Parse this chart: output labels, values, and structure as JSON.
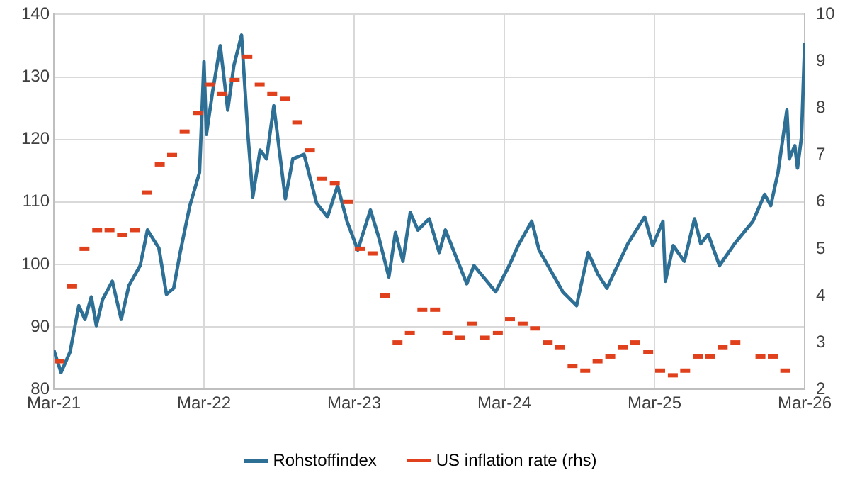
{
  "chart_data": {
    "type": "line",
    "legend": "bottom",
    "grid": true,
    "xlim": [
      "2021-03",
      "2026-03"
    ],
    "xticks": [
      {
        "value": "2021-03",
        "label": "Mar-21"
      },
      {
        "value": "2022-03",
        "label": "Mar-22"
      },
      {
        "value": "2023-03",
        "label": "Mar-23"
      },
      {
        "value": "2024-03",
        "label": "Mar-24"
      },
      {
        "value": "2025-03",
        "label": "Mar-25"
      },
      {
        "value": "2026-03",
        "label": "Mar-26"
      }
    ],
    "ylim": [
      80,
      140
    ],
    "yticks": [
      80,
      90,
      100,
      110,
      120,
      130,
      140
    ],
    "y2lim": [
      2,
      10
    ],
    "y2ticks": [
      2,
      3,
      4,
      5,
      6,
      7,
      8,
      9,
      10
    ],
    "series": [
      {
        "name": "Rohstoffindex",
        "type": "line",
        "color": "#2e6f96",
        "marker": "none",
        "line_style": "solid",
        "x": [
          "2021-03-01",
          "2021-03-19",
          "2021-04-10",
          "2021-05-01",
          "2021-05-16",
          "2021-06-01",
          "2021-06-13",
          "2021-06-28",
          "2021-07-22",
          "2021-08-13",
          "2021-09-01",
          "2021-09-28",
          "2021-10-16",
          "2021-11-13",
          "2021-12-01",
          "2021-12-19",
          "2022-01-04",
          "2022-01-28",
          "2022-02-19",
          "2022-03-01",
          "2022-03-07",
          "2022-03-22",
          "2022-04-10",
          "2022-04-28",
          "2022-05-13",
          "2022-06-01",
          "2022-06-16",
          "2022-06-28",
          "2022-07-16",
          "2022-08-01",
          "2022-08-19",
          "2022-09-16",
          "2022-10-04",
          "2022-11-01",
          "2022-12-01",
          "2022-12-28",
          "2023-01-22",
          "2023-02-13",
          "2023-03-10",
          "2023-04-10",
          "2023-05-01",
          "2023-05-25",
          "2023-06-10",
          "2023-06-28",
          "2023-07-16",
          "2023-08-04",
          "2023-09-01",
          "2023-09-25",
          "2023-10-10",
          "2023-12-01",
          "2023-12-19",
          "2024-02-10",
          "2024-03-13",
          "2024-04-04",
          "2024-05-07",
          "2024-05-25",
          "2024-07-22",
          "2024-08-25",
          "2024-09-22",
          "2024-10-16",
          "2024-11-07",
          "2024-12-28",
          "2025-02-07",
          "2025-02-25",
          "2025-03-22",
          "2025-03-28",
          "2025-04-16",
          "2025-05-13",
          "2025-06-07",
          "2025-06-22",
          "2025-07-10",
          "2025-08-07",
          "2025-09-13",
          "2025-10-28",
          "2025-11-25",
          "2025-12-10",
          "2025-12-28",
          "2026-01-19",
          "2026-01-25",
          "2026-02-07",
          "2026-02-13",
          "2026-02-22",
          "2026-03-01"
        ],
        "values": [
          86.3,
          82.7,
          86,
          93.4,
          91.2,
          94.8,
          90.2,
          94.4,
          97.3,
          91.2,
          96.6,
          99.8,
          105.5,
          102.6,
          95.2,
          96.2,
          101.9,
          109.4,
          114.7,
          132.5,
          120.8,
          127.5,
          135,
          124.7,
          131.8,
          136.7,
          121.1,
          110.8,
          118.3,
          116.9,
          125.4,
          110.5,
          116.9,
          117.6,
          109.8,
          107.6,
          112.6,
          106.9,
          102.3,
          108.7,
          104.1,
          98,
          105.1,
          100.5,
          108.3,
          105.5,
          107.3,
          101.9,
          105.5,
          96.9,
          99.8,
          95.6,
          99.8,
          103,
          106.9,
          102.3,
          95.6,
          93.4,
          101.9,
          98.4,
          96.2,
          103.3,
          107.6,
          103,
          106.9,
          97.3,
          103,
          100.5,
          107.3,
          103.3,
          104.8,
          99.8,
          103.3,
          106.9,
          111.2,
          109.4,
          114.7,
          124.7,
          116.9,
          119,
          115.4,
          120.4,
          135.4
        ]
      },
      {
        "name": "US inflation rate (rhs)",
        "type": "scatter",
        "axis": "y2",
        "color": "#e0401c",
        "x": [
          "2021-03-15",
          "2021-04-15",
          "2021-05-15",
          "2021-06-15",
          "2021-07-15",
          "2021-08-15",
          "2021-09-15",
          "2021-10-15",
          "2021-11-15",
          "2021-12-15",
          "2022-01-15",
          "2022-02-15",
          "2022-03-15",
          "2022-04-15",
          "2022-05-15",
          "2022-06-15",
          "2022-07-15",
          "2022-08-15",
          "2022-09-15",
          "2022-10-15",
          "2022-11-15",
          "2022-12-15",
          "2023-01-15",
          "2023-02-15",
          "2023-03-15",
          "2023-04-15",
          "2023-05-15",
          "2023-06-15",
          "2023-07-15",
          "2023-08-15",
          "2023-09-15",
          "2023-10-15",
          "2023-11-15",
          "2023-12-15",
          "2024-01-15",
          "2024-02-15",
          "2024-03-15",
          "2024-04-15",
          "2024-05-15",
          "2024-06-15",
          "2024-07-15",
          "2024-08-15",
          "2024-09-15",
          "2024-10-15",
          "2024-11-15",
          "2024-12-15",
          "2025-01-15",
          "2025-02-15",
          "2025-03-15",
          "2025-04-15",
          "2025-05-15",
          "2025-06-15",
          "2025-07-15",
          "2025-08-15",
          "2025-09-15",
          "2025-10-15",
          "2025-11-15",
          "2025-12-15",
          "2026-01-15"
        ],
        "values": [
          2.6,
          4.2,
          5.0,
          5.4,
          5.4,
          5.3,
          5.4,
          6.2,
          6.8,
          7.0,
          7.5,
          7.9,
          8.5,
          8.3,
          8.6,
          9.1,
          8.5,
          8.3,
          8.2,
          7.7,
          7.1,
          6.5,
          6.4,
          6.0,
          5.0,
          4.9,
          4.0,
          3.0,
          3.2,
          3.7,
          3.7,
          3.2,
          3.1,
          3.4,
          3.1,
          3.2,
          3.5,
          3.4,
          3.3,
          3.0,
          2.9,
          2.5,
          2.4,
          2.6,
          2.7,
          2.9,
          3.0,
          2.8,
          2.4,
          2.3,
          2.4,
          2.7,
          2.7,
          2.9,
          3.0,
          null,
          2.7,
          2.7,
          2.4
        ]
      }
    ]
  }
}
